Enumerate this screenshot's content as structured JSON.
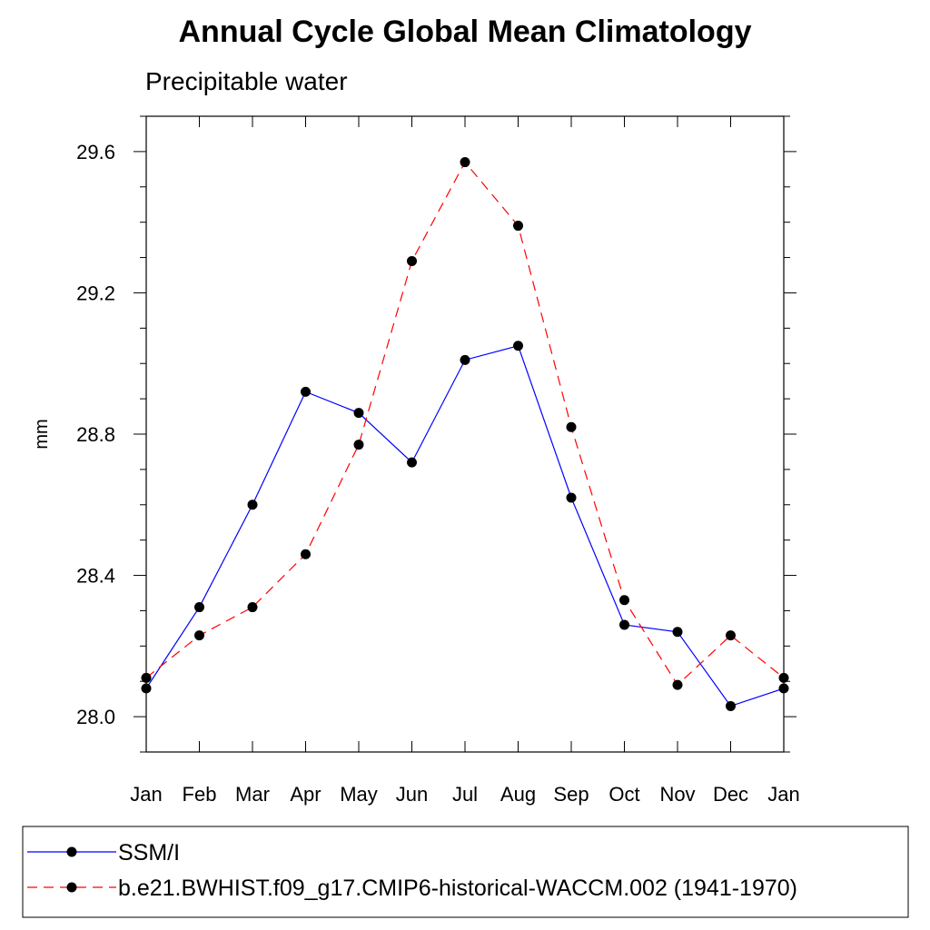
{
  "chart_data": {
    "type": "line",
    "title": "Annual Cycle Global Mean Climatology",
    "subtitle": "Precipitable water",
    "xlabel": "",
    "ylabel": "mm",
    "categories": [
      "Jan",
      "Feb",
      "Mar",
      "Apr",
      "May",
      "Jun",
      "Jul",
      "Aug",
      "Sep",
      "Oct",
      "Nov",
      "Dec",
      "Jan"
    ],
    "ylim": [
      27.9,
      29.7
    ],
    "yticks": [
      28.0,
      28.4,
      28.8,
      29.2,
      29.6
    ],
    "ytick_labels": [
      "28.0",
      "28.4",
      "28.8",
      "29.2",
      "29.6"
    ],
    "grid": false,
    "legend_position": "bottom",
    "series": [
      {
        "name": "SSM/I",
        "color": "#0000ff",
        "line_style": "solid",
        "marker": "filled-circle",
        "values": [
          28.08,
          28.31,
          28.6,
          28.92,
          28.86,
          28.72,
          29.01,
          29.05,
          28.62,
          28.26,
          28.24,
          28.03,
          28.08
        ]
      },
      {
        "name": "b.e21.BWHIST.f09_g17.CMIP6-historical-WACCM.002 (1941-1970)",
        "color": "#ff0000",
        "line_style": "dashed",
        "marker": "filled-circle",
        "values": [
          28.11,
          28.23,
          28.31,
          28.46,
          28.77,
          29.29,
          29.57,
          29.39,
          28.82,
          28.33,
          28.09,
          28.23,
          28.11
        ]
      }
    ]
  }
}
